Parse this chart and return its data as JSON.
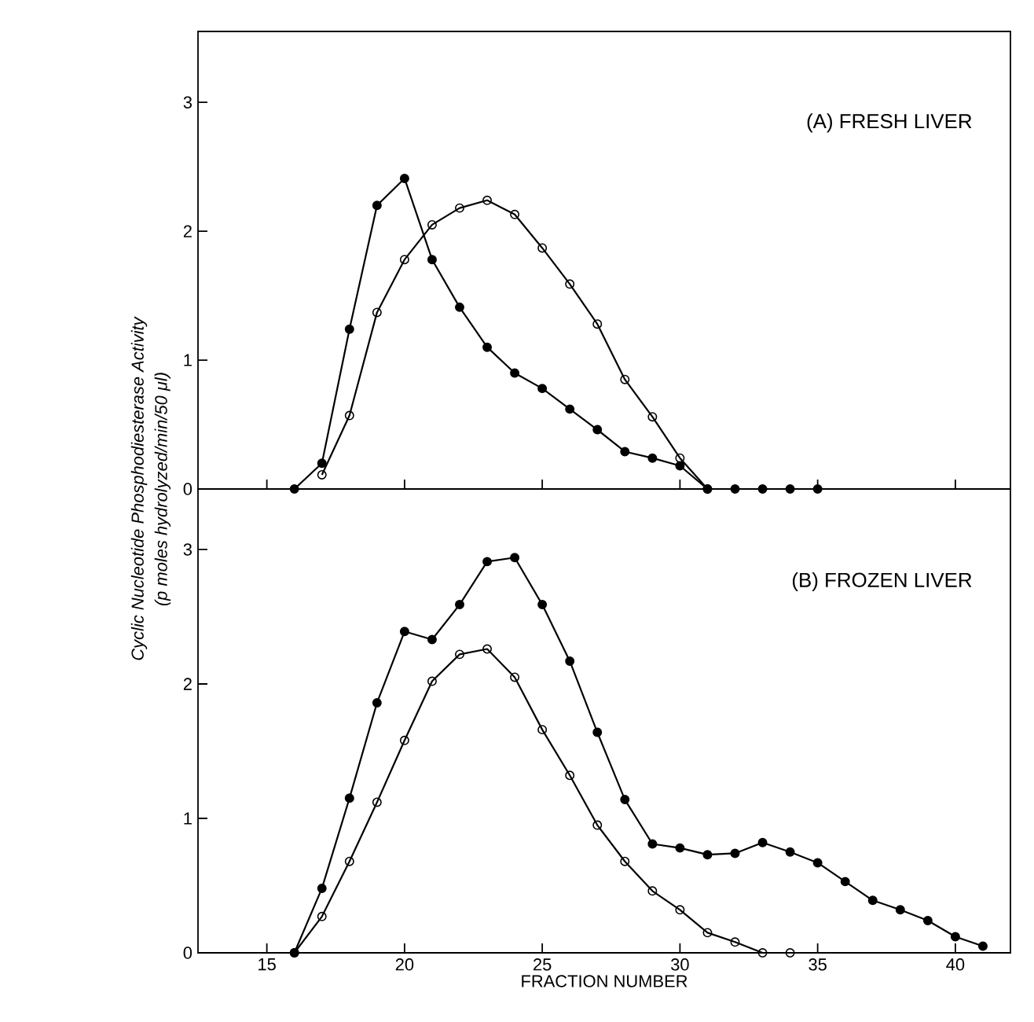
{
  "chart_data": [
    {
      "type": "line",
      "title": "(A) FRESH LIVER",
      "ylabel": "Cyclic Nucleotide Phosphodiesterase Activity",
      "xlim": [
        12.5,
        42
      ],
      "xticks": [
        15,
        20,
        25,
        30,
        35,
        40
      ],
      "ylim": [
        0,
        3.55
      ],
      "yticks": [
        0,
        1,
        2,
        3
      ],
      "tick_labels": "y",
      "line_style": "solid",
      "series": [
        {
          "color": "#000000",
          "marker": "circle",
          "x": [
            16,
            17,
            18,
            19,
            20,
            21,
            22,
            23,
            24,
            25,
            26,
            27,
            28,
            29,
            30,
            31,
            32,
            33,
            34,
            35
          ],
          "values": [
            0,
            0.2,
            1.24,
            2.2,
            2.41,
            1.78,
            1.41,
            1.1,
            0.9,
            0.78,
            0.62,
            0.46,
            0.29,
            0.24,
            0.18,
            0,
            0,
            0,
            0,
            0
          ]
        },
        {
          "color": "#000000",
          "marker": "open circle",
          "x": [
            17,
            18,
            19,
            20,
            21,
            22,
            23,
            24,
            25,
            26,
            27,
            28,
            29,
            30,
            31
          ],
          "values": [
            0.11,
            0.57,
            1.37,
            1.78,
            2.05,
            2.18,
            2.24,
            2.13,
            1.87,
            1.59,
            1.28,
            0.85,
            0.56,
            0.24,
            0
          ]
        }
      ]
    },
    {
      "type": "line",
      "title": "(B) FROZEN LIVER",
      "ylabel": "(p moles hydrolyzed/min/50 μl)",
      "xlabel": "FRACTION NUMBER",
      "xlim": [
        12.5,
        42
      ],
      "xticks": [
        15,
        20,
        25,
        30,
        35,
        40
      ],
      "ylim": [
        0,
        3.45
      ],
      "yticks": [
        0,
        1,
        2,
        3
      ],
      "line_style": "solid",
      "series": [
        {
          "color": "#000000",
          "marker": "circle",
          "x": [
            16,
            17,
            18,
            19,
            20,
            21,
            22,
            23,
            24,
            25,
            26,
            27,
            28,
            29,
            30,
            31,
            32,
            33,
            34,
            35,
            36,
            37,
            38,
            39,
            40,
            41
          ],
          "values": [
            0,
            0.48,
            1.15,
            1.86,
            2.39,
            2.33,
            2.59,
            2.91,
            2.94,
            2.59,
            2.17,
            1.64,
            1.14,
            0.81,
            0.78,
            0.73,
            0.74,
            0.82,
            0.75,
            0.67,
            0.53,
            0.39,
            0.32,
            0.24,
            0.12,
            0.05
          ]
        },
        {
          "color": "#000000",
          "marker": "open circle",
          "x": [
            16,
            17,
            18,
            19,
            20,
            21,
            22,
            23,
            24,
            25,
            26,
            27,
            28,
            29,
            30,
            31,
            32,
            33,
            34
          ],
          "values": [
            0,
            0.27,
            0.68,
            1.12,
            1.58,
            2.02,
            2.22,
            2.26,
            2.05,
            1.66,
            1.32,
            0.95,
            0.68,
            0.46,
            0.32,
            0.15,
            0.08,
            0,
            0
          ]
        }
      ]
    }
  ]
}
